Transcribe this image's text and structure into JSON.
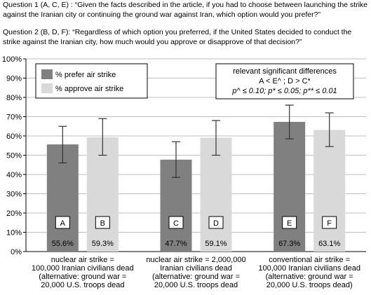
{
  "questions": {
    "q1": "Question 1 (A, C, E) : “Given the facts described in the article, if you had to choose between launching the strike against the Iranian city or continuing the ground war against Iran, which option would you prefer?”",
    "q2": "Question 2 (B, D, F): “Regardless of which option you preferred, if the United States decided to conduct the strike against the Iranian city, how much would you approve or disapprove of that decision?”"
  },
  "legend": {
    "items": [
      {
        "label": "% prefer air strike",
        "color": "#808080"
      },
      {
        "label": "% approve air strike",
        "color": "#d9d9d9"
      }
    ]
  },
  "differences_box": {
    "title": "relevant significant differences",
    "line1": "A < E^ ; D > C*",
    "line2": "p^ ≤ 0.10; p* ≤ 0.05; p** ≤ 0.01"
  },
  "chart_data": {
    "type": "bar",
    "ylim": [
      0,
      100
    ],
    "yticks": [
      "0%",
      "10%",
      "20%",
      "30%",
      "40%",
      "50%",
      "60%",
      "70%",
      "80%",
      "90%",
      "100%"
    ],
    "grid": true,
    "legend_position": "top-left",
    "categories": [
      [
        "nuclear air strike =",
        "100,000 Iranian civilians dead",
        "(alternative: ground war =",
        "20,000 U.S. troops dead"
      ],
      [
        "nuclear air strike = 2,000,000",
        "Iranian civilians dead",
        "(alternative: ground war =",
        "20,000 U.S. troops dead"
      ],
      [
        "conventional air strike =",
        "100,000 Iranian civilians dead",
        "(alternative: ground war =",
        "20,000 U.S. troops dead)"
      ]
    ],
    "series": [
      {
        "name": "% prefer air strike",
        "color": "#808080",
        "values": [
          55.6,
          47.7,
          67.3
        ],
        "labels": [
          "55.6%",
          "47.7%",
          "67.3%"
        ],
        "letters": [
          "A",
          "C",
          "E"
        ],
        "error_low": [
          46,
          38.5,
          58.5
        ],
        "error_high": [
          65,
          57,
          76
        ]
      },
      {
        "name": "% approve air strike",
        "color": "#d9d9d9",
        "values": [
          59.3,
          59.1,
          63.1
        ],
        "labels": [
          "59.3%",
          "59.1%",
          "63.1%"
        ],
        "letters": [
          "B",
          "D",
          "F"
        ],
        "error_low": [
          50,
          50,
          54.5
        ],
        "error_high": [
          69,
          68,
          72
        ]
      }
    ]
  }
}
